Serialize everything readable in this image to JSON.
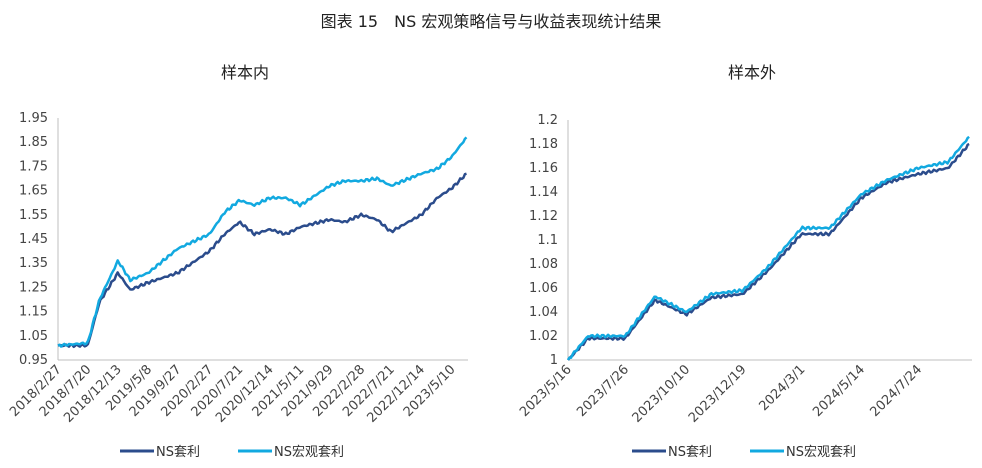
{
  "figure_title": "图表 15　NS 宏观策略信号与收益表现统计结果",
  "colors": {
    "ns_arb": "#2B4C8C",
    "ns_macro_arb": "#12A9E0"
  },
  "chart_data": [
    {
      "type": "line",
      "title": "样本内",
      "x_tick_labels": [
        "2018/2/27",
        "2018/7/20",
        "2018/12/13",
        "2019/5/8",
        "2019/9/27",
        "2020/2/27",
        "2020/7/21",
        "2020/12/14",
        "2021/5/11",
        "2021/9/29",
        "2022/2/28",
        "2022/7/21",
        "2022/12/14",
        "2023/5/10"
      ],
      "y_tick_labels": [
        "0.95",
        "1.05",
        "1.15",
        "1.25",
        "1.35",
        "1.45",
        "1.55",
        "1.65",
        "1.75",
        "1.85",
        "1.95"
      ],
      "ylim": [
        0.95,
        1.95
      ],
      "legend": [
        "NS套利",
        "NS宏观套利"
      ],
      "legend_position": "bottom",
      "series": [
        {
          "name": "NS套利",
          "color": "#2B4C8C",
          "x": [
            "2018/2/27",
            "2018/7/20",
            "2018/9/15",
            "2018/12/13",
            "2019/2/10",
            "2019/5/8",
            "2019/9/27",
            "2020/2/27",
            "2020/5/10",
            "2020/7/21",
            "2020/10/1",
            "2020/12/14",
            "2021/3/1",
            "2021/5/11",
            "2021/9/29",
            "2021/12/10",
            "2022/2/28",
            "2022/5/15",
            "2022/7/21",
            "2022/12/14",
            "2023/3/1",
            "2023/5/10",
            "2023/7/20"
          ],
          "values": [
            1.01,
            1.01,
            1.19,
            1.31,
            1.24,
            1.27,
            1.31,
            1.4,
            1.47,
            1.52,
            1.47,
            1.49,
            1.47,
            1.5,
            1.53,
            1.52,
            1.55,
            1.53,
            1.48,
            1.55,
            1.62,
            1.66,
            1.72
          ]
        },
        {
          "name": "NS宏观套利",
          "color": "#12A9E0",
          "x": [
            "2018/2/27",
            "2018/7/20",
            "2018/9/15",
            "2018/12/13",
            "2019/2/10",
            "2019/5/8",
            "2019/9/27",
            "2020/2/27",
            "2020/5/10",
            "2020/7/21",
            "2020/10/1",
            "2020/12/14",
            "2021/3/1",
            "2021/5/11",
            "2021/9/29",
            "2021/12/10",
            "2022/2/28",
            "2022/5/15",
            "2022/7/21",
            "2022/12/14",
            "2023/3/1",
            "2023/5/10",
            "2023/7/20"
          ],
          "values": [
            1.01,
            1.02,
            1.2,
            1.36,
            1.28,
            1.31,
            1.41,
            1.47,
            1.56,
            1.61,
            1.59,
            1.62,
            1.62,
            1.59,
            1.67,
            1.69,
            1.69,
            1.7,
            1.67,
            1.72,
            1.74,
            1.79,
            1.87
          ]
        }
      ]
    },
    {
      "type": "line",
      "title": "样本外",
      "x_tick_labels": [
        "2023/5/16",
        "2023/7/26",
        "2023/10/10",
        "2023/12/19",
        "2024/3/1",
        "2024/5/14",
        "2024/7/24"
      ],
      "y_tick_labels": [
        "1",
        "1.02",
        "1.04",
        "1.06",
        "1.08",
        "1.1",
        "1.12",
        "1.14",
        "1.16",
        "1.18",
        "1.2"
      ],
      "ylim": [
        1.0,
        1.2
      ],
      "legend": [
        "NS套利",
        "NS宏观套利"
      ],
      "legend_position": "bottom",
      "series": [
        {
          "name": "NS套利",
          "color": "#2B4C8C",
          "x": [
            "2023/5/16",
            "2023/6/10",
            "2023/7/26",
            "2023/9/1",
            "2023/10/10",
            "2023/11/10",
            "2023/12/19",
            "2024/1/20",
            "2024/3/1",
            "2024/4/5",
            "2024/5/14",
            "2024/6/15",
            "2024/7/24",
            "2024/8/30",
            "2024/9/25"
          ],
          "values": [
            1.0,
            1.018,
            1.018,
            1.05,
            1.038,
            1.052,
            1.055,
            1.075,
            1.105,
            1.105,
            1.135,
            1.148,
            1.155,
            1.16,
            1.18
          ]
        },
        {
          "name": "NS宏观套利",
          "color": "#12A9E0",
          "x": [
            "2023/5/16",
            "2023/6/10",
            "2023/7/26",
            "2023/9/1",
            "2023/10/10",
            "2023/11/10",
            "2023/12/19",
            "2024/1/20",
            "2024/3/1",
            "2024/4/5",
            "2024/5/14",
            "2024/6/15",
            "2024/7/24",
            "2024/8/30",
            "2024/9/25"
          ],
          "values": [
            1.0,
            1.02,
            1.02,
            1.053,
            1.04,
            1.055,
            1.058,
            1.078,
            1.11,
            1.11,
            1.138,
            1.15,
            1.16,
            1.165,
            1.186
          ]
        }
      ]
    }
  ]
}
